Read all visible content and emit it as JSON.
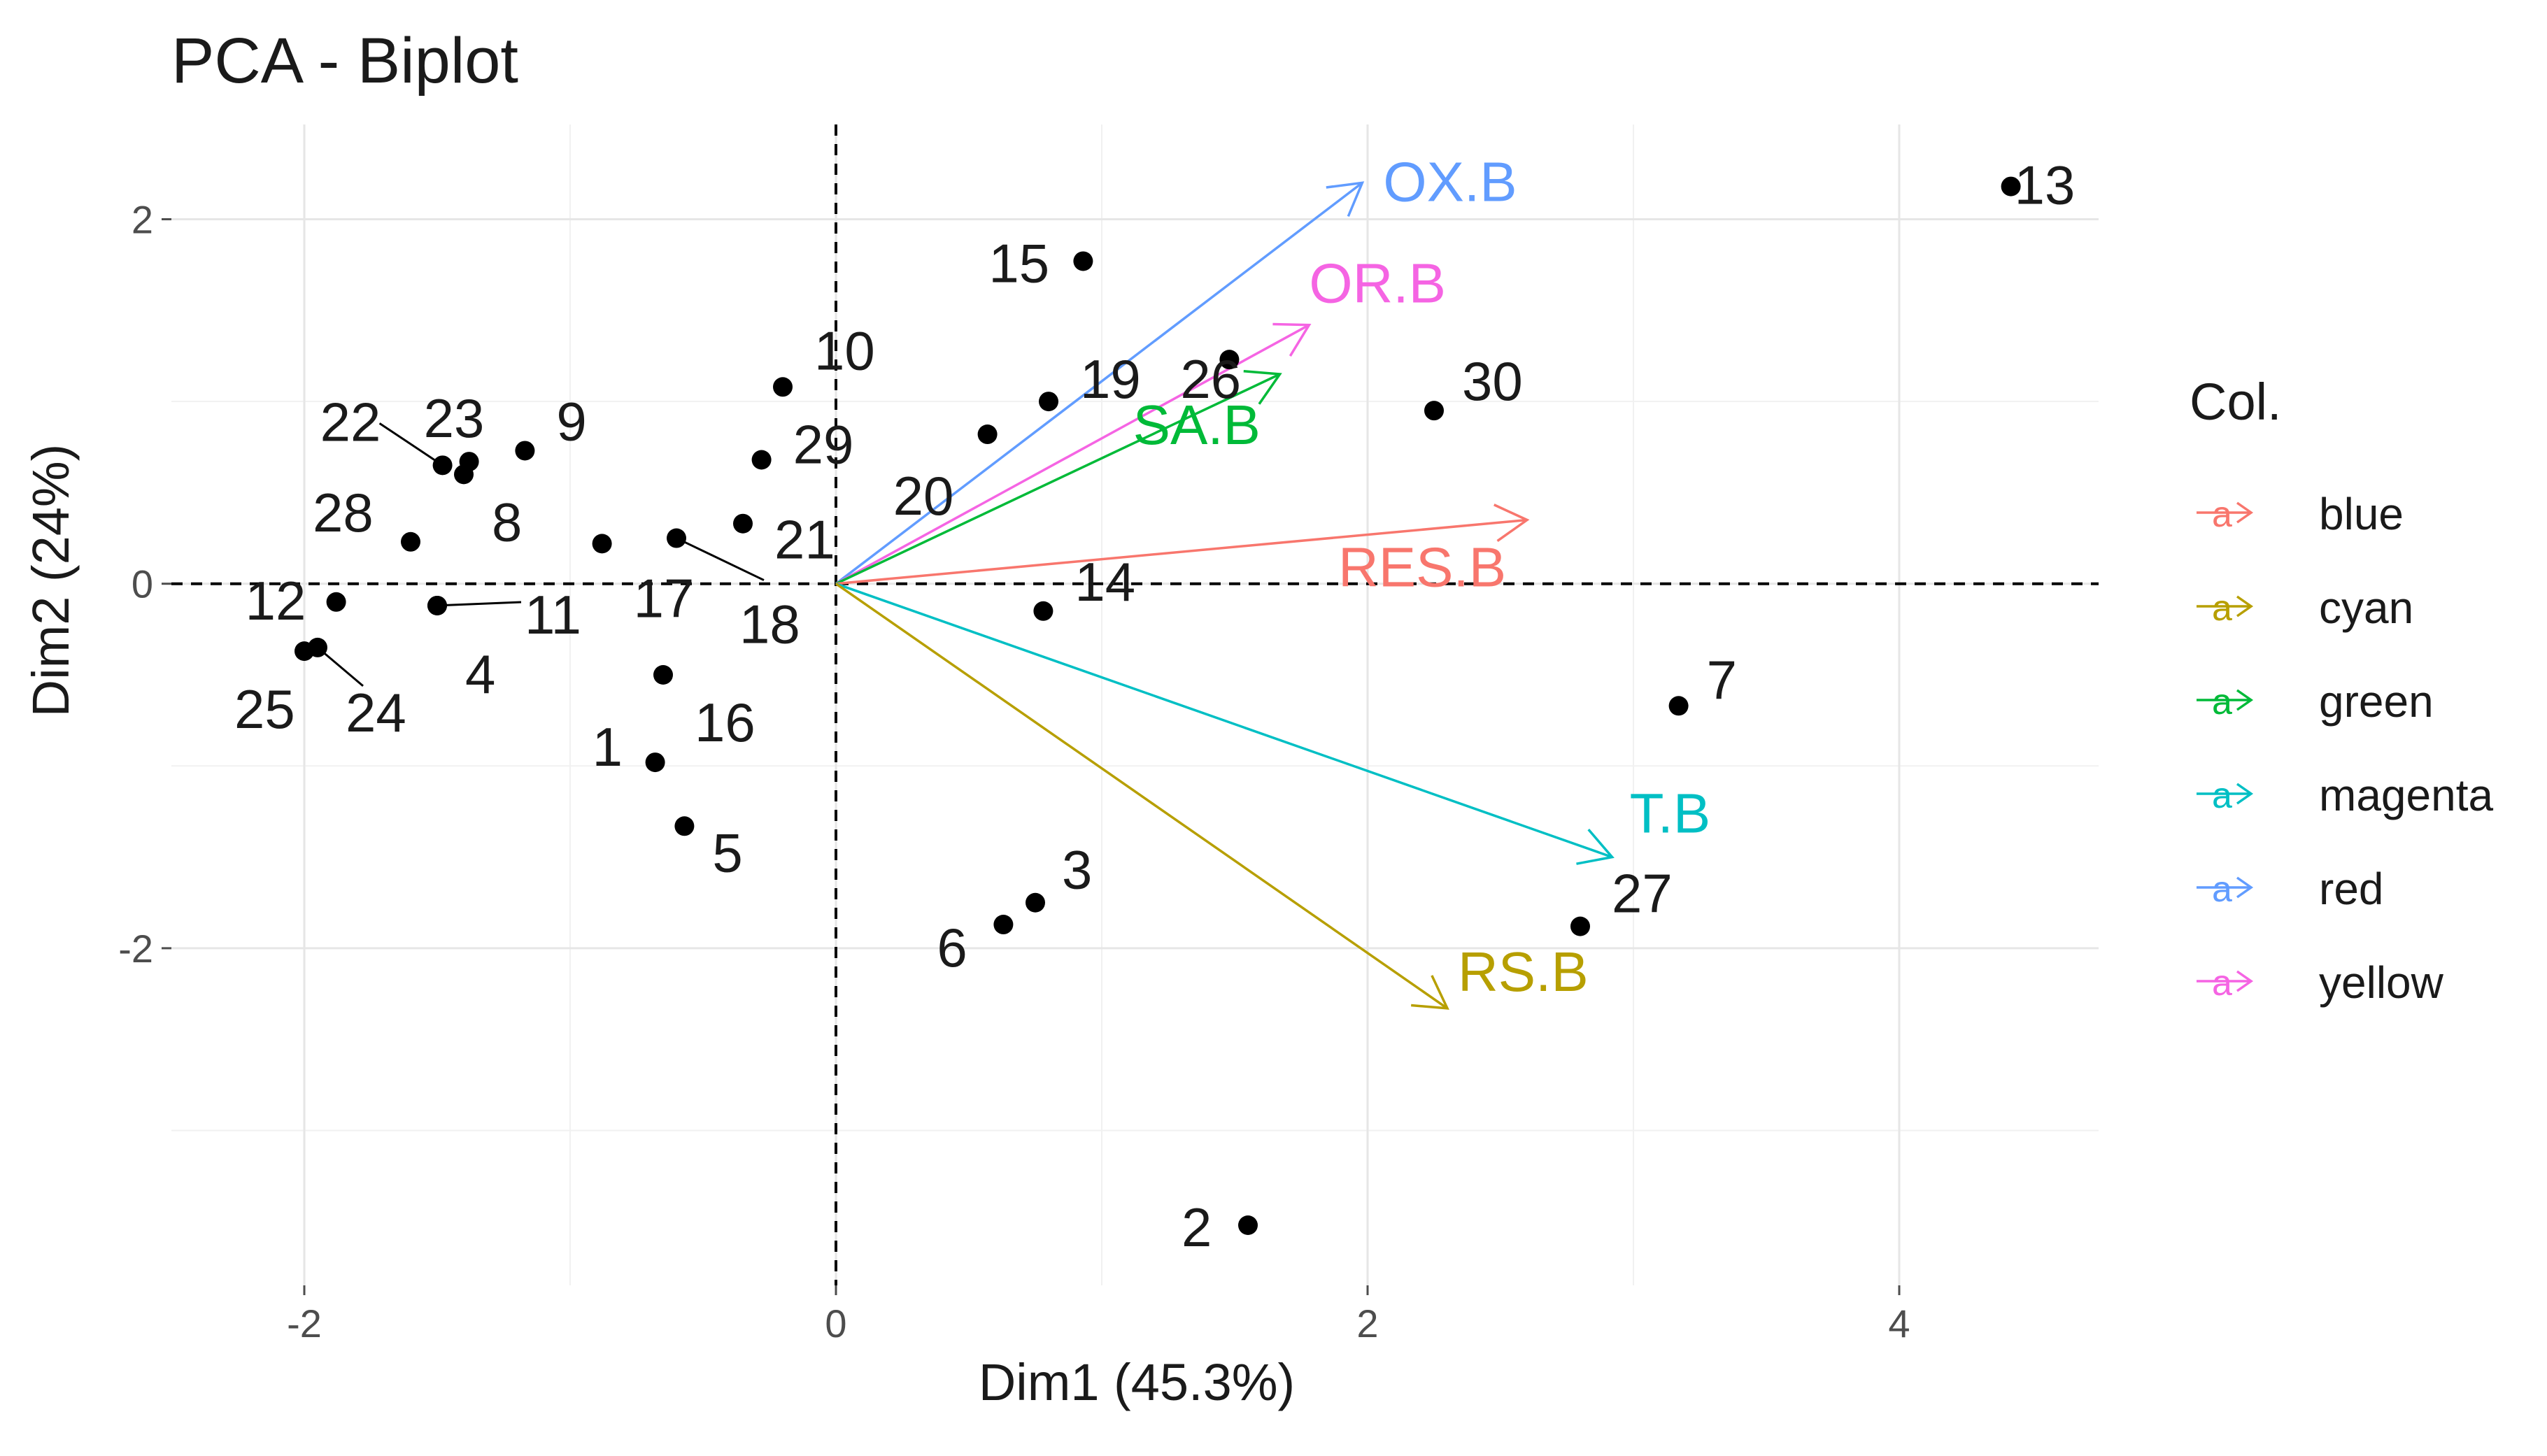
{
  "chart_data": {
    "type": "scatter",
    "title": "PCA - Biplot",
    "xlabel": "Dim1 (45.3%)",
    "ylabel": "Dim2 (24%)",
    "xlim": [
      -2.5,
      4.75
    ],
    "ylim": [
      -3.85,
      2.52
    ],
    "x_ticks": [
      -2,
      0,
      2,
      4
    ],
    "y_ticks": [
      -2,
      0,
      2
    ],
    "tick_labels_x": [
      "-2",
      "0",
      "2",
      "4"
    ],
    "tick_labels_y": [
      "-2",
      "0",
      "2"
    ],
    "grid": true,
    "reference_lines": {
      "x": 0,
      "y": 0
    },
    "points": [
      {
        "id": "1",
        "x": -0.68,
        "y": -0.98
      },
      {
        "id": "2",
        "x": 1.55,
        "y": -3.52
      },
      {
        "id": "3",
        "x": 0.75,
        "y": -1.75
      },
      {
        "id": "4",
        "x": -1.5,
        "y": -0.12
      },
      {
        "id": "5",
        "x": -0.57,
        "y": -1.33
      },
      {
        "id": "6",
        "x": 0.63,
        "y": -1.87
      },
      {
        "id": "7",
        "x": 3.17,
        "y": -0.67
      },
      {
        "id": "8",
        "x": -1.4,
        "y": 0.6
      },
      {
        "id": "9",
        "x": -1.17,
        "y": 0.73
      },
      {
        "id": "10",
        "x": -0.2,
        "y": 1.08
      },
      {
        "id": "11",
        "x": -1.5,
        "y": -0.12
      },
      {
        "id": "12",
        "x": -1.88,
        "y": -0.1
      },
      {
        "id": "13",
        "x": 4.42,
        "y": 2.18
      },
      {
        "id": "14",
        "x": 0.78,
        "y": -0.15
      },
      {
        "id": "15",
        "x": 0.93,
        "y": 1.77
      },
      {
        "id": "16",
        "x": -0.65,
        "y": -0.5
      },
      {
        "id": "17",
        "x": -0.88,
        "y": 0.22
      },
      {
        "id": "18",
        "x": -0.6,
        "y": 0.25
      },
      {
        "id": "19",
        "x": 0.8,
        "y": 1.0
      },
      {
        "id": "20",
        "x": 0.57,
        "y": 0.82
      },
      {
        "id": "21",
        "x": -0.35,
        "y": 0.33
      },
      {
        "id": "22",
        "x": -1.48,
        "y": 0.65
      },
      {
        "id": "23",
        "x": -1.38,
        "y": 0.67
      },
      {
        "id": "24",
        "x": -1.95,
        "y": -0.35
      },
      {
        "id": "25",
        "x": -2.0,
        "y": -0.37
      },
      {
        "id": "26",
        "x": 1.48,
        "y": 1.23
      },
      {
        "id": "27",
        "x": 2.8,
        "y": -1.88
      },
      {
        "id": "28",
        "x": -1.6,
        "y": 0.23
      },
      {
        "id": "29",
        "x": -0.28,
        "y": 0.68
      },
      {
        "id": "30",
        "x": 2.25,
        "y": 0.95
      }
    ],
    "arrows": [
      {
        "name": "OX.B",
        "x": 1.98,
        "y": 2.2,
        "group": "red",
        "color": "#619CFF"
      },
      {
        "name": "OR.B",
        "x": 1.78,
        "y": 1.42,
        "group": "yellow",
        "color": "#F564E3"
      },
      {
        "name": "SA.B",
        "x": 1.67,
        "y": 1.15,
        "group": "green",
        "color": "#00BA38"
      },
      {
        "name": "RES.B",
        "x": 2.6,
        "y": 0.35,
        "group": "blue",
        "color": "#F8766D"
      },
      {
        "name": "T.B",
        "x": 2.92,
        "y": -1.5,
        "group": "magenta",
        "color": "#00BFC4"
      },
      {
        "name": "RS.B",
        "x": 2.3,
        "y": -2.33,
        "group": "cyan",
        "color": "#B79F00"
      }
    ],
    "legend": {
      "title": "Col.",
      "position": "right",
      "key_glyph": "a",
      "entries": [
        {
          "label": "blue",
          "color": "#F8766D"
        },
        {
          "label": "cyan",
          "color": "#B79F00"
        },
        {
          "label": "green",
          "color": "#00BA38"
        },
        {
          "label": "magenta",
          "color": "#00BFC4"
        },
        {
          "label": "red",
          "color": "#619CFF"
        },
        {
          "label": "yellow",
          "color": "#F564E3"
        }
      ]
    }
  }
}
